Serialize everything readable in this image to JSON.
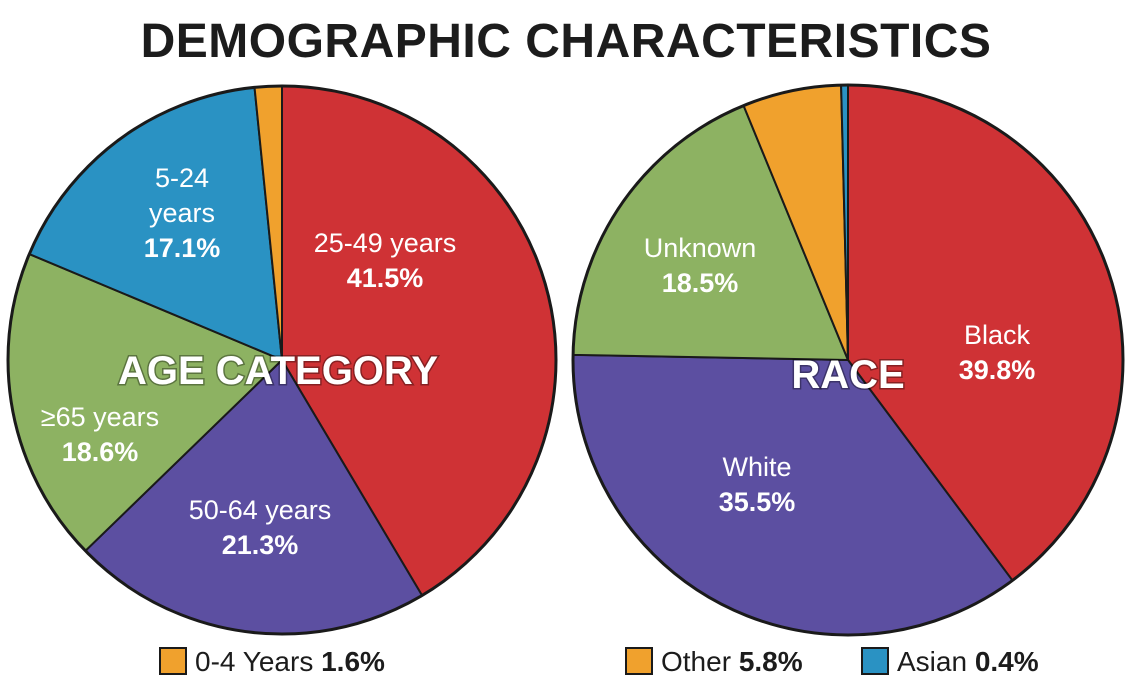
{
  "title": "DEMOGRAPHIC CHARACTERISTICS",
  "chart_data": [
    {
      "type": "pie",
      "title": "AGE CATEGORY",
      "slices": [
        {
          "id": "age-25-49",
          "label": "25-49 years",
          "value": 41.5,
          "display": "41.5%",
          "color": "#cf3235"
        },
        {
          "id": "age-50-64",
          "label": "50-64 years",
          "value": 21.3,
          "display": "21.3%",
          "color": "#5c4fa1"
        },
        {
          "id": "age-65plus",
          "label": "≥65 years",
          "value": 18.6,
          "display": "18.6%",
          "color": "#8db262"
        },
        {
          "id": "age-5-24",
          "label": "5-24 years",
          "value": 17.1,
          "display": "17.1%",
          "color": "#2a92c3"
        },
        {
          "id": "age-0-4",
          "label": "0-4 Years",
          "value": 1.6,
          "display": "1.6%",
          "color": "#f0a12d"
        }
      ],
      "legend": [
        {
          "label": "0-4 Years",
          "display": "1.6%",
          "color": "#f0a12d"
        }
      ]
    },
    {
      "type": "pie",
      "title": "RACE",
      "slices": [
        {
          "id": "race-black",
          "label": "Black",
          "value": 39.8,
          "display": "39.8%",
          "color": "#cf3235"
        },
        {
          "id": "race-white",
          "label": "White",
          "value": 35.5,
          "display": "35.5%",
          "color": "#5c4fa1"
        },
        {
          "id": "race-unknown",
          "label": "Unknown",
          "value": 18.5,
          "display": "18.5%",
          "color": "#8db262"
        },
        {
          "id": "race-other",
          "label": "Other",
          "value": 5.8,
          "display": "5.8%",
          "color": "#f0a12d"
        },
        {
          "id": "race-asian",
          "label": "Asian",
          "value": 0.4,
          "display": "0.4%",
          "color": "#2a92c3"
        }
      ],
      "legend": [
        {
          "label": "Other",
          "display": "5.8%",
          "color": "#f0a12d"
        },
        {
          "label": "Asian",
          "display": "0.4%",
          "color": "#2a92c3"
        }
      ]
    }
  ]
}
